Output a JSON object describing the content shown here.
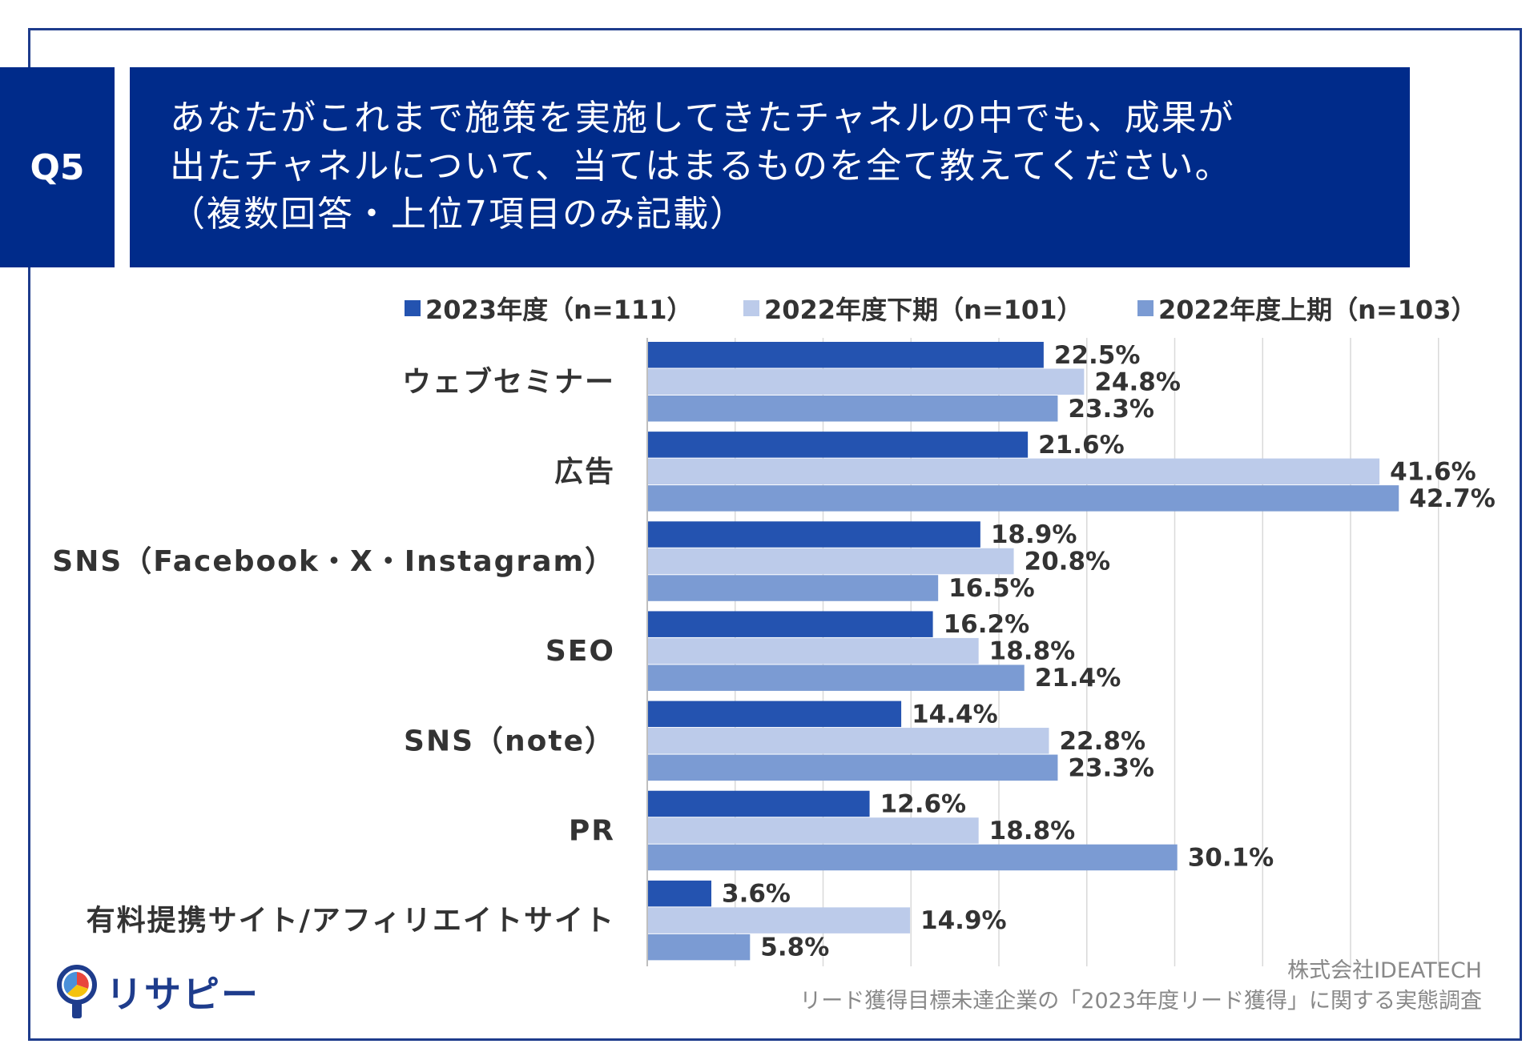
{
  "question": {
    "tag": "Q5",
    "title_lines": [
      "あなたがこれまで施策を実施してきたチャネルの中でも、成果が",
      "出たチャネルについて、当てはまるものを全て教えてください。",
      "（複数回答・上位7項目のみ記載）"
    ]
  },
  "colors": {
    "header_bg": "#002b8a",
    "series": [
      "#2453b0",
      "#bccbea",
      "#7b9bd3"
    ]
  },
  "chart_data": {
    "type": "bar",
    "orientation": "horizontal",
    "categories": [
      "ウェブセミナー",
      "広告",
      "SNS（Facebook・X・Instagram）",
      "SEO",
      "SNS（note）",
      "PR",
      "有料提携サイト/アフィリエイトサイト"
    ],
    "series": [
      {
        "name": "2023年度（n=111）",
        "values": [
          22.5,
          21.6,
          18.9,
          16.2,
          14.4,
          12.6,
          3.6
        ]
      },
      {
        "name": "2022年度下期（n=101）",
        "values": [
          24.8,
          41.6,
          20.8,
          18.8,
          22.8,
          18.8,
          14.9
        ]
      },
      {
        "name": "2022年度上期（n=103）",
        "values": [
          23.3,
          42.7,
          16.5,
          21.4,
          23.3,
          30.1,
          5.8
        ]
      }
    ],
    "xlim": [
      0,
      45
    ],
    "grid_step": 5,
    "value_suffix": "%",
    "legend_position": "top"
  },
  "footer": {
    "logo_text": "リサピー",
    "company": "株式会社IDEATECH",
    "survey": "リード獲得目標未達企業の「2023年度リード獲得」に関する実態調査"
  }
}
